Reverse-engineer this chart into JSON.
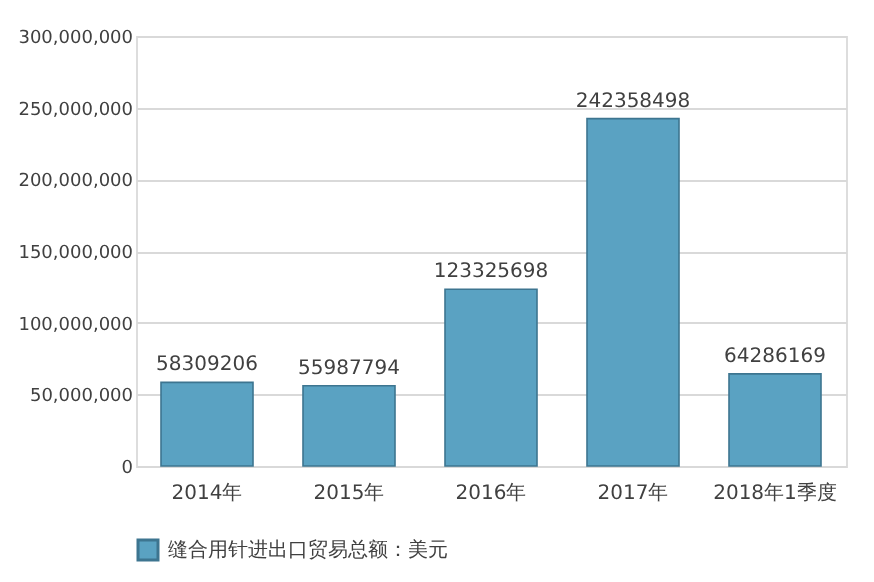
{
  "chart_data": {
    "type": "bar",
    "categories": [
      "2014年",
      "2015年",
      "2016年",
      "2017年",
      "2018年1季度"
    ],
    "series": [
      {
        "name": "缝合用针进出口贸易总额：美元",
        "color": "#5aa2c2",
        "values": [
          58309206,
          55987794,
          123325698,
          242358498,
          64286169
        ]
      }
    ],
    "ylim": [
      0,
      300000000
    ],
    "yticks": [
      0,
      {
        "value": 50000000,
        "label": "50,000,000"
      },
      {
        "value": 100000000,
        "label": "100,000,000"
      },
      {
        "value": 150000000,
        "label": "150,000,000"
      },
      {
        "value": 200000000,
        "label": "200,000,000"
      },
      {
        "value": 250000000,
        "label": "250,000,000"
      },
      {
        "value": 300000000,
        "label": "300,000,000"
      }
    ],
    "grid": "y",
    "legend": "bottom",
    "data_labels": true
  }
}
